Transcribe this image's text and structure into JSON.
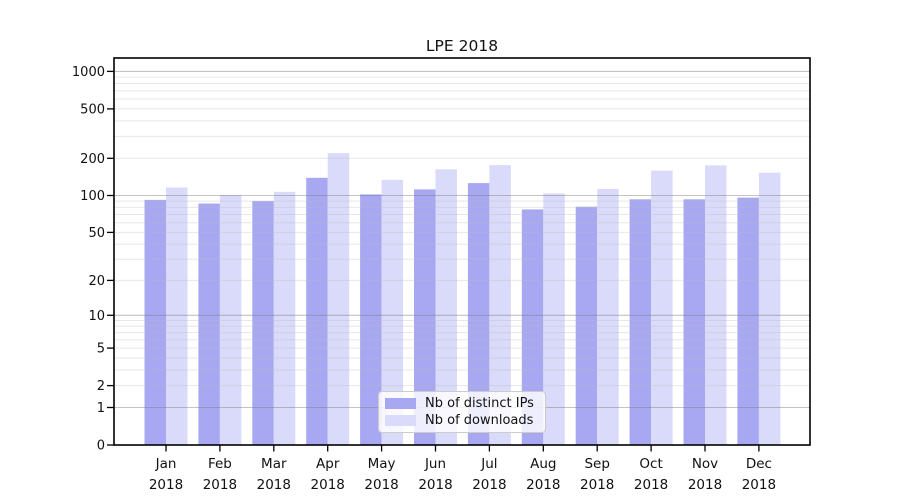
{
  "chart_data": {
    "type": "bar",
    "title": "LPE 2018",
    "xlabel": "",
    "ylabel": "",
    "yscale": "log1p",
    "ylim": [
      0,
      1280
    ],
    "yticks": [
      0,
      1,
      2,
      5,
      10,
      20,
      50,
      100,
      200,
      500,
      1000
    ],
    "grid": "both",
    "legend_position": "lower center",
    "categories": [
      "Jan",
      "Feb",
      "Mar",
      "Apr",
      "May",
      "Jun",
      "Jul",
      "Aug",
      "Sep",
      "Oct",
      "Nov",
      "Dec"
    ],
    "year": "2018",
    "series": [
      {
        "name": "Nb of distinct IPs",
        "color": "#a8a8f2",
        "values": [
          92,
          86,
          90,
          139,
          102,
          112,
          126,
          77,
          81,
          93,
          93,
          96
        ]
      },
      {
        "name": "Nb of downloads",
        "color": "#dadafa",
        "values": [
          116,
          101,
          107,
          220,
          134,
          163,
          176,
          104,
          113,
          159,
          175,
          153
        ]
      }
    ]
  },
  "colors": {
    "spine": "#000000",
    "tick_text": "#111111",
    "grid_major": "#808080",
    "grid_minor": "#bbbbbb"
  }
}
